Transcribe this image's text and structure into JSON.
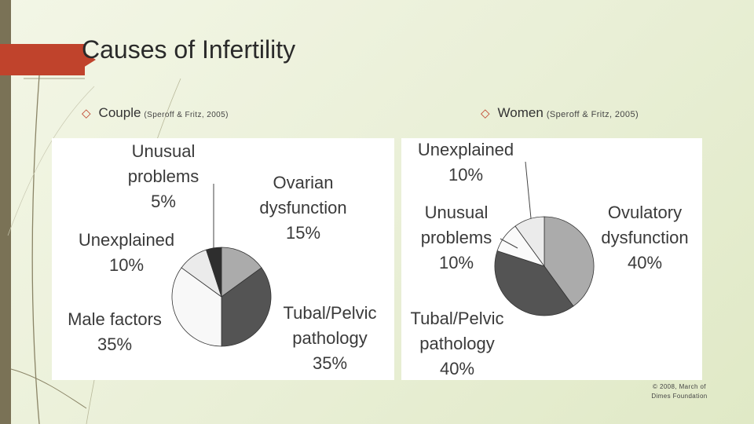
{
  "title": "Causes of Infertility",
  "bullets": [
    {
      "main": "Couple",
      "cite": "(Speroff & Fritz, 2005)"
    },
    {
      "main": "Women",
      "cite": "(Speroff & Fritz, 2005)"
    }
  ],
  "copyright": [
    "© 2008, March of",
    "Dimes Foundation"
  ],
  "colors": {
    "accent": "#c0432c",
    "band": "#7a7256"
  },
  "chart_data": [
    {
      "type": "pie",
      "slices": [
        {
          "label": [
            "Ovarian",
            "dysfunction",
            "15%"
          ],
          "value": 15,
          "color": "#ababab"
        },
        {
          "label": [
            "Tubal/Pelvic",
            "pathology",
            "35%"
          ],
          "value": 35,
          "color": "#545454"
        },
        {
          "label": [
            "Male factors",
            "35%"
          ],
          "value": 35,
          "color": "#f8f8f8"
        },
        {
          "label": [
            "Unexplained",
            "10%"
          ],
          "value": 10,
          "color": "#ebebeb"
        },
        {
          "label": [
            "Unusual",
            "problems",
            "5%"
          ],
          "value": 5,
          "color": "#2e2e2e"
        }
      ]
    },
    {
      "type": "pie",
      "slices": [
        {
          "label": [
            "Ovulatory",
            "dysfunction",
            "40%"
          ],
          "value": 40,
          "color": "#ababab"
        },
        {
          "label": [
            "Tubal/Pelvic",
            "pathology",
            "40%"
          ],
          "value": 40,
          "color": "#545454"
        },
        {
          "label": [
            "Unusual",
            "problems",
            "10%"
          ],
          "value": 10,
          "color": "#fafafa"
        },
        {
          "label": [
            "Unexplained",
            "10%"
          ],
          "value": 10,
          "color": "#ebebeb"
        }
      ]
    }
  ]
}
